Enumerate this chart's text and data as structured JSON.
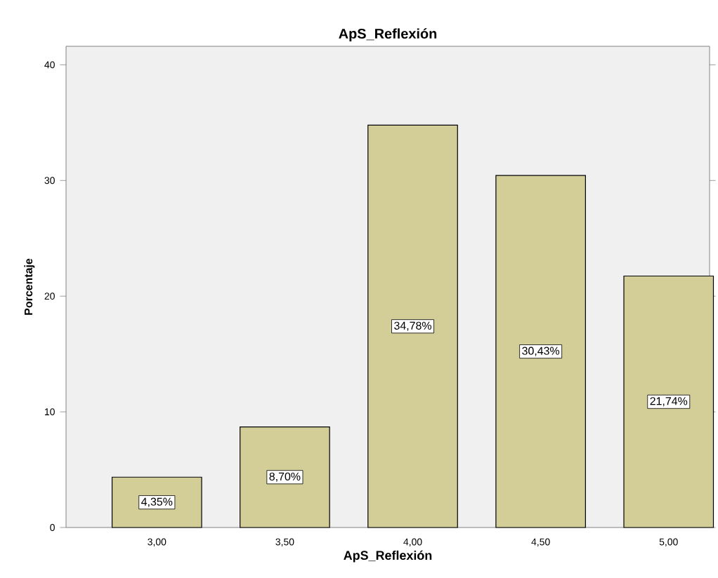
{
  "chart_data": {
    "type": "bar",
    "title": "ApS_Reflexión",
    "xlabel": "ApS_Reflexión",
    "ylabel": "Porcentaje",
    "categories": [
      "3,00",
      "3,50",
      "4,00",
      "4,50",
      "5,00"
    ],
    "values": [
      4.35,
      8.7,
      34.78,
      30.43,
      21.74
    ],
    "value_labels": [
      "4,35%",
      "8,70%",
      "34,78%",
      "30,43%",
      "21,74%"
    ],
    "color": "#d3ce97",
    "ylim": [
      0,
      41.6
    ],
    "yticks": [
      0,
      10,
      20,
      30,
      40
    ]
  }
}
